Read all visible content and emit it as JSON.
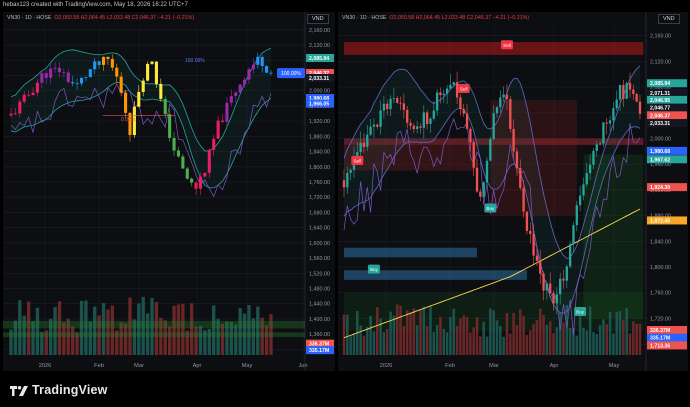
{
  "caption": "hebax123 created with TradingView.com, May 18, 2026 16:22 UTC+7",
  "footer": {
    "brand": "TradingView"
  },
  "colors": {
    "up": "#26a69a",
    "down": "#ef5350",
    "bb": "#26a69a",
    "purple": "#7e57c2",
    "blue_tag": "#2962ff",
    "yellow": "#ffeb3b"
  },
  "chart_data": [
    {
      "type": "candlestick",
      "symbol": "VN30 · 1D · HOSE",
      "ohlc": {
        "o": "O2,050.58",
        "h": "H2,064.45",
        "l": "L2,033.48",
        "c": "C2,046.37",
        "chg": "−4.21 (−0.21%)"
      },
      "currency": "VND",
      "y_ticks": [
        "2,160.00",
        "2,120.00",
        "2,080.00",
        "2,040.00",
        "2,000.00",
        "1,960.00",
        "1,920.00",
        "1,880.00",
        "1,840.00",
        "1,800.00",
        "1,760.00",
        "1,720.00",
        "1,680.00",
        "1,640.00",
        "1,600.00",
        "1,560.00",
        "1,520.00",
        "1,480.00",
        "1,440.00",
        "1,400.00",
        "1,360.00",
        "1,320.00"
      ],
      "ylim": [
        1300,
        2170
      ],
      "x_labels": [
        "2026",
        "Feb",
        "Mar",
        "Apr",
        "May",
        "Jun"
      ],
      "annotations": {
        "pct_top": "100.00%",
        "pct_mid": "0.00%",
        "tag": "100.00%"
      },
      "price_tags": [
        {
          "value": 2085.94,
          "label": "2,085.94",
          "color": "#26a69a"
        },
        {
          "value": 2046.37,
          "label": "2,046.37",
          "color": "#131722"
        },
        {
          "value": 2046.37,
          "label": "2,046.37",
          "color": "#ef5350"
        },
        {
          "value": 2033.31,
          "label": "2,033.31",
          "color": "#131722"
        },
        {
          "value": 1980.68,
          "label": "1,980.68",
          "color": "#2962ff"
        },
        {
          "value": 1966.05,
          "label": "1,966.05",
          "color": "#2962ff"
        },
        {
          "value": 1335,
          "label": "336.37M",
          "color": "#ef5350"
        },
        {
          "value": 1318,
          "label": "335.17M",
          "color": "#2962ff"
        }
      ]
    },
    {
      "type": "candlestick",
      "symbol": "VN30 · 1D · HOSE",
      "ohlc": {
        "o": "O2,050.58",
        "h": "H2,064.45",
        "l": "L2,033.48",
        "c": "C2,046.37",
        "chg": "−4.21 (−0.21%)"
      },
      "currency": "VND",
      "y_ticks": [
        "2,160.00",
        "2,120.00",
        "2,080.00",
        "2,040.00",
        "2,000.00",
        "1,960.00",
        "1,920.00",
        "1,880.00",
        "1,840.00",
        "1,800.00",
        "1,760.00",
        "1,720.00",
        "1,680.00"
      ],
      "ylim": [
        1660,
        2175
      ],
      "x_labels": [
        "2026",
        "Feb",
        "Mar",
        "Apr",
        "May"
      ],
      "signals": [
        {
          "label": "Sell",
          "idx": 4,
          "value": 1965,
          "kind": "sell"
        },
        {
          "label": "Buy",
          "idx": 9,
          "value": 1796,
          "kind": "buy"
        },
        {
          "label": "Sell",
          "idx": 36,
          "value": 2077,
          "kind": "sell"
        },
        {
          "label": "Buy",
          "idx": 44,
          "value": 1891,
          "kind": "buy"
        },
        {
          "label": "Sell",
          "idx": 49,
          "value": 2145,
          "kind": "sell"
        },
        {
          "label": "Buy",
          "idx": 71,
          "value": 1730,
          "kind": "buy"
        }
      ],
      "price_tags": [
        {
          "value": 2085.94,
          "label": "2,085.94",
          "color": "#26a69a"
        },
        {
          "value": 2071,
          "label": "2,071.31",
          "color": "#131722"
        },
        {
          "value": 2060,
          "label": "2,046.95",
          "color": "#26a69a"
        },
        {
          "value": 2048,
          "label": "2,046.77",
          "color": "#131722"
        },
        {
          "value": 2036,
          "label": "2,046.37",
          "color": "#ef5350"
        },
        {
          "value": 2024,
          "label": "2,033.31",
          "color": "#131722"
        },
        {
          "value": 1980.68,
          "label": "1,980.68",
          "color": "#2962ff"
        },
        {
          "value": 1967.62,
          "label": "1,967.62",
          "color": "#26a69a"
        },
        {
          "value": 1924.3,
          "label": "1,924.30",
          "color": "#ef5350"
        },
        {
          "value": 1872.45,
          "label": "1,872.45",
          "color": "#f9a825"
        },
        {
          "value": 1702,
          "label": "336.37M",
          "color": "#ef5350"
        },
        {
          "value": 1690,
          "label": "335.17M",
          "color": "#2962ff"
        },
        {
          "value": 1678,
          "label": "1,713.36",
          "color": "#ef5350"
        }
      ]
    }
  ]
}
